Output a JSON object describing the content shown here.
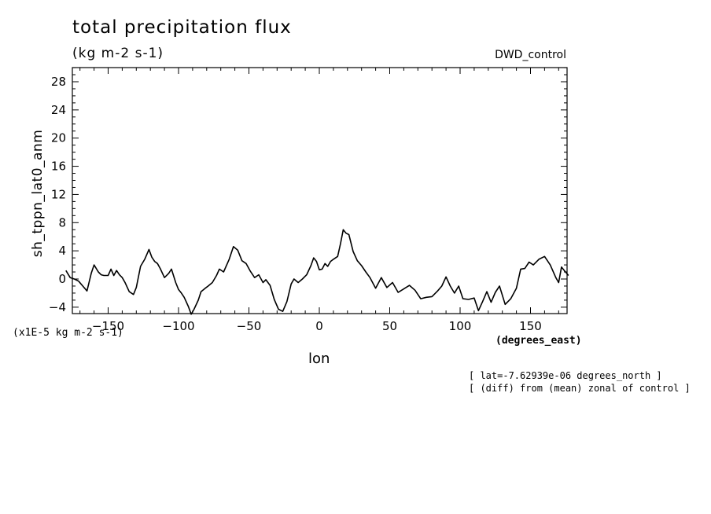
{
  "header": {
    "title": "total precipitation flux",
    "units": "(kg m-2 s-1)",
    "run": "DWD_control"
  },
  "axes": {
    "xlabel": "lon",
    "xunits": "(degrees_east)",
    "ylabel": "sh_tppn_lat0_anm",
    "scale_note": "(x1E-5 kg m-2 s-1)"
  },
  "notes": {
    "line1": "[ lat=-7.62939e-06 degrees_north ]",
    "line2": "[ (diff) from (mean) zonal of control ]"
  },
  "colors": {
    "line": "#000000",
    "background": "#ffffff"
  },
  "chart_data": {
    "type": "line",
    "title": "total precipitation flux",
    "subtitle": "(kg m-2 s-1)",
    "xlabel": "lon",
    "ylabel": "sh_tppn_lat0_anm",
    "xlim": [
      -180,
      177
    ],
    "ylim": [
      -5,
      30
    ],
    "xticks": [
      -150,
      -100,
      -50,
      0,
      50,
      100,
      150
    ],
    "yticks": [
      -4,
      0,
      4,
      8,
      12,
      16,
      20,
      24,
      28
    ],
    "grid": false,
    "series": [
      {
        "name": "",
        "x": [
          -180,
          -177,
          -174,
          -171,
          -168,
          -165,
          -162,
          -160,
          -157,
          -155,
          -153,
          -150,
          -148,
          -146,
          -144,
          -142,
          -140,
          -138,
          -135,
          -132,
          -130,
          -127,
          -124,
          -121,
          -119,
          -117,
          -115,
          -113,
          -110,
          -107,
          -105,
          -102,
          -100,
          -98,
          -96,
          -93,
          -91,
          -89,
          -86,
          -84,
          -81,
          -79,
          -76,
          -73,
          -71,
          -68,
          -64,
          -61,
          -58,
          -55,
          -52,
          -49,
          -46,
          -43,
          -40,
          -38,
          -35,
          -32,
          -29,
          -26,
          -23,
          -20,
          -18,
          -15,
          -12,
          -9,
          -6,
          -4,
          -2,
          0,
          2,
          4,
          6,
          8,
          10,
          13,
          15,
          17,
          19,
          21,
          24,
          27,
          30,
          33,
          36,
          40,
          44,
          48,
          52,
          56,
          60,
          64,
          68,
          72,
          76,
          80,
          84,
          87,
          90,
          93,
          96,
          99,
          102,
          106,
          110,
          113,
          116,
          119,
          122,
          125,
          128,
          132,
          136,
          140,
          143,
          146,
          149,
          152,
          156,
          160,
          164,
          168,
          170,
          172,
          174,
          177
        ],
        "values": [
          1.2,
          0.2,
          0,
          -0.3,
          -1.0,
          -1.7,
          0.8,
          2.0,
          1.0,
          0.6,
          0.5,
          0.5,
          1.4,
          0.5,
          1.2,
          0.6,
          0.2,
          -0.5,
          -1.8,
          -2.2,
          -1.2,
          1.8,
          2.8,
          4.2,
          3.1,
          2.5,
          2.2,
          1.5,
          0.2,
          0.8,
          1.4,
          -0.5,
          -1.5,
          -2.0,
          -2.6,
          -3.9,
          -5.0,
          -4.3,
          -3.0,
          -1.8,
          -1.3,
          -1.0,
          -0.5,
          0.5,
          1.4,
          1.0,
          2.8,
          4.6,
          4.1,
          2.6,
          2.2,
          1.1,
          0.2,
          0.6,
          -0.5,
          -0.1,
          -0.9,
          -2.9,
          -4.3,
          -4.6,
          -3.2,
          -0.7,
          0,
          -0.5,
          0,
          0.6,
          1.9,
          3.0,
          2.5,
          1.3,
          1.4,
          2.2,
          1.8,
          2.5,
          2.8,
          3.2,
          5.0,
          7.0,
          6.5,
          6.3,
          3.9,
          2.6,
          1.9,
          1.0,
          0.2,
          -1.3,
          0.2,
          -1.2,
          -0.5,
          -1.9,
          -1.4,
          -0.9,
          -1.6,
          -2.8,
          -2.6,
          -2.5,
          -1.7,
          -1.0,
          0.3,
          -1.0,
          -2.0,
          -1.0,
          -2.8,
          -2.9,
          -2.7,
          -4.5,
          -3.2,
          -1.8,
          -3.3,
          -1.9,
          -1.0,
          -3.6,
          -2.8,
          -1.3,
          1.4,
          1.5,
          2.4,
          2.0,
          2.8,
          3.2,
          2.0,
          0.2,
          -0.5,
          1.7,
          1.2,
          0.5
        ]
      }
    ]
  }
}
